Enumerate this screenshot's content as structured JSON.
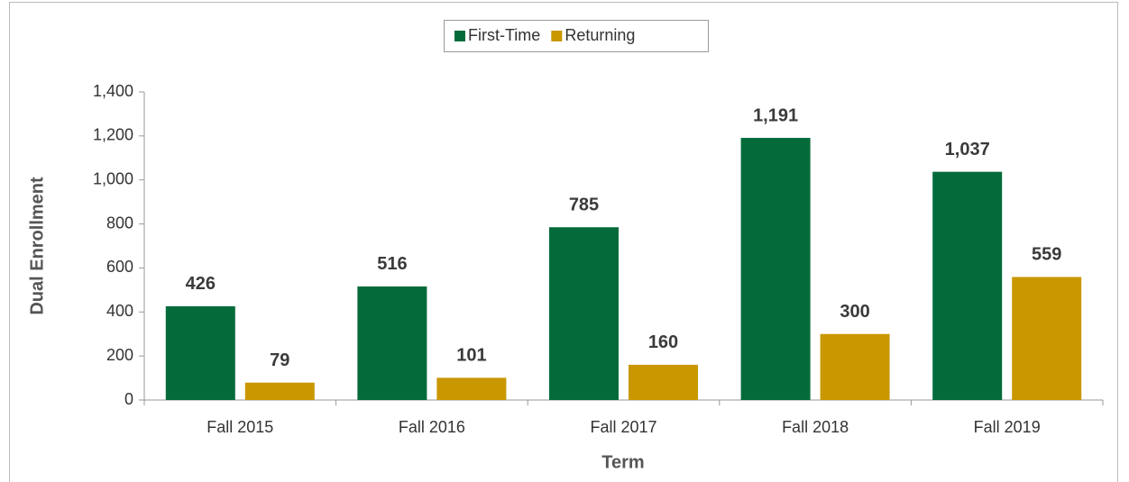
{
  "chart_data": {
    "type": "bar",
    "categories": [
      "Fall 2015",
      "Fall 2016",
      "Fall 2017",
      "Fall 2018",
      "Fall 2019"
    ],
    "series": [
      {
        "name": "First-Time",
        "color": "#036b3a",
        "values": [
          426,
          516,
          785,
          1191,
          1037
        ],
        "value_labels": [
          "426",
          "516",
          "785",
          "1,191",
          "1,037"
        ]
      },
      {
        "name": "Returning",
        "color": "#c99700",
        "values": [
          79,
          101,
          160,
          300,
          559
        ],
        "value_labels": [
          "79",
          "101",
          "160",
          "300",
          "559"
        ]
      }
    ],
    "xlabel": "Term",
    "ylabel": "Dual Enrollment",
    "ylim": [
      0,
      1400
    ],
    "yticks": [
      0,
      200,
      400,
      600,
      800,
      {
        "value": 1000,
        "label": "1,000"
      },
      {
        "value": 1200,
        "label": "1,200"
      },
      {
        "value": 1400,
        "label": "1,400"
      }
    ],
    "grid": false,
    "legend": "top"
  }
}
